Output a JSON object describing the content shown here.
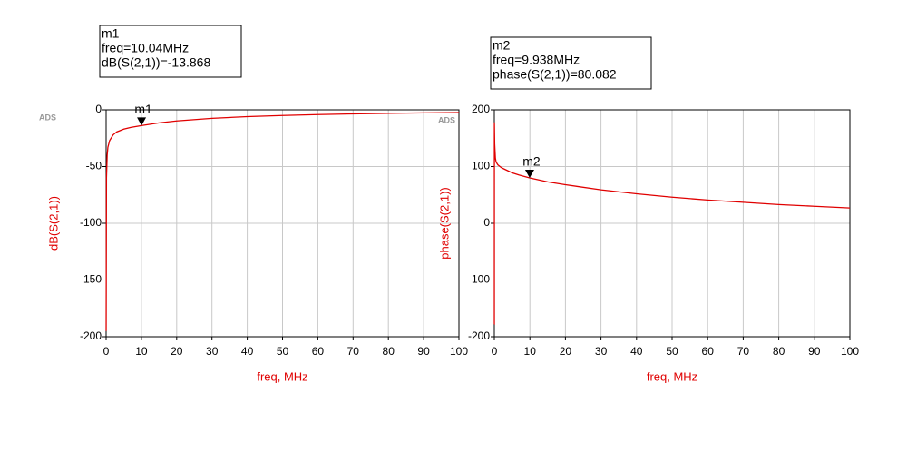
{
  "chart_data": [
    {
      "type": "line",
      "xlabel": "freq, MHz",
      "ylabel": "dB(S(2,1))",
      "watermark": "ADS",
      "x": [
        0.01,
        0.1,
        0.3,
        0.5,
        1,
        2,
        3,
        5,
        7,
        10,
        15,
        20,
        30,
        40,
        50,
        60,
        70,
        80,
        90,
        100
      ],
      "series": [
        {
          "name": "dB(S(2,1))",
          "color": "#e00000",
          "values": [
            -195,
            -60,
            -40,
            -33,
            -27,
            -22,
            -19.5,
            -17,
            -15.5,
            -13.868,
            -11.5,
            -9.8,
            -7.5,
            -6,
            -5,
            -4.2,
            -3.6,
            -3.1,
            -2.7,
            -2.4
          ]
        }
      ],
      "xlim": [
        0,
        100
      ],
      "xticks": [
        0,
        10,
        20,
        30,
        40,
        50,
        60,
        70,
        80,
        90,
        100
      ],
      "ylim": [
        -200,
        0
      ],
      "yticks": [
        -200,
        -150,
        -100,
        -50,
        0
      ],
      "grid": true,
      "marker": {
        "label": "m1",
        "x": 10.04,
        "y": -13.868,
        "box": [
          "m1",
          "freq=10.04MHz",
          "dB(S(2,1))=-13.868"
        ]
      }
    },
    {
      "type": "line",
      "xlabel": "freq, MHz",
      "ylabel": "phase(S(2,1))",
      "watermark": "ADS",
      "x": [
        0.005,
        0.01,
        0.02,
        0.1,
        0.3,
        0.5,
        1,
        2,
        3,
        5,
        7,
        9.938,
        15,
        20,
        30,
        40,
        50,
        60,
        70,
        80,
        90,
        100
      ],
      "series": [
        {
          "name": "phase(S(2,1))",
          "color": "#e00000",
          "values": [
            -178,
            -178,
            178,
            140,
            115,
            108,
            103,
            98,
            95,
            89,
            85,
            80.082,
            73,
            68,
            59,
            52,
            46,
            41,
            37,
            33,
            30,
            27
          ]
        }
      ],
      "xlim": [
        0,
        100
      ],
      "xticks": [
        0,
        10,
        20,
        30,
        40,
        50,
        60,
        70,
        80,
        90,
        100
      ],
      "ylim": [
        -200,
        200
      ],
      "yticks": [
        -200,
        -100,
        0,
        100,
        200
      ],
      "grid": true,
      "marker": {
        "label": "m2",
        "x": 9.938,
        "y": 80.082,
        "box": [
          "m2",
          "freq=9.938MHz",
          "phase(S(2,1))=80.082"
        ]
      }
    }
  ]
}
